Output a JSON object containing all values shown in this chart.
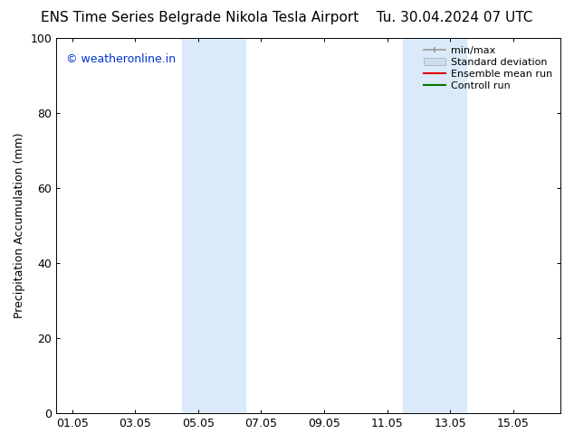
{
  "title_left": "ENS Time Series Belgrade Nikola Tesla Airport",
  "title_right": "Tu. 30.04.2024 07 UTC",
  "ylabel": "Precipitation Accumulation (mm)",
  "xlabel": "",
  "ylim": [
    0,
    100
  ],
  "xtick_labels": [
    "01.05",
    "03.05",
    "05.05",
    "07.05",
    "09.05",
    "11.05",
    "13.05",
    "15.05"
  ],
  "xtick_positions": [
    0,
    2,
    4,
    6,
    8,
    10,
    12,
    14
  ],
  "ytick_labels": [
    "0",
    "20",
    "40",
    "60",
    "80",
    "100"
  ],
  "ytick_positions": [
    0,
    20,
    40,
    60,
    80,
    100
  ],
  "shaded_regions": [
    {
      "xstart": 3.5,
      "xend": 5.5
    },
    {
      "xstart": 10.5,
      "xend": 12.5
    }
  ],
  "shade_color": "#daeaf8",
  "background_color": "#ffffff",
  "watermark_text": "© weatheronline.in",
  "watermark_color": "#0033cc",
  "legend_entries": [
    {
      "label": "min/max",
      "color": "#999999",
      "type": "minmax"
    },
    {
      "label": "Standard deviation",
      "color": "#ccdded",
      "type": "bar"
    },
    {
      "label": "Ensemble mean run",
      "color": "#dd0000",
      "type": "line"
    },
    {
      "label": "Controll run",
      "color": "#007700",
      "type": "line"
    }
  ],
  "title_fontsize": 11,
  "tick_fontsize": 9,
  "ylabel_fontsize": 9,
  "legend_fontsize": 8
}
